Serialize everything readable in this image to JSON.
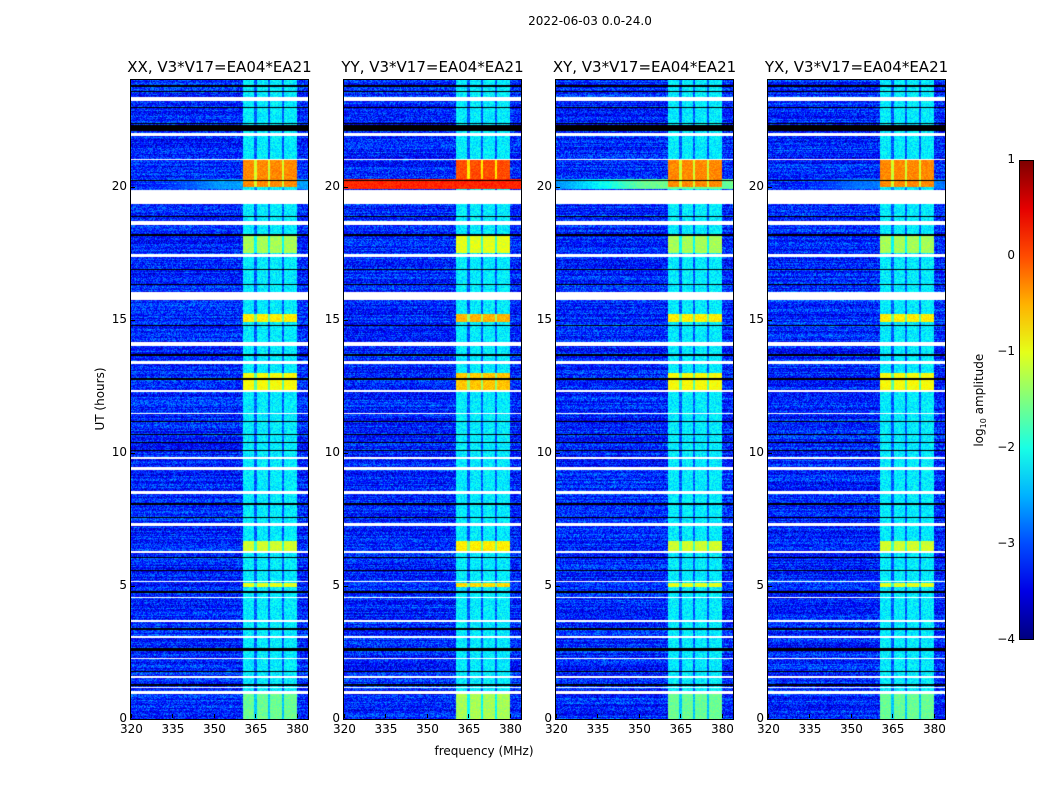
{
  "chart_data": {
    "type": "heatmap",
    "title": "2022-06-03 0.0-24.0",
    "xlabel": "frequency (MHz)",
    "ylabel": "UT (hours)",
    "xlim": [
      320,
      384
    ],
    "ylim": [
      0,
      24
    ],
    "xticks": [
      "320",
      "335",
      "350",
      "365",
      "380"
    ],
    "yticks": [
      "0",
      "5",
      "10",
      "15",
      "20"
    ],
    "panels": [
      {
        "title": "XX, V3*V17=EA04*EA21",
        "broadband_20h_level": -2.6
      },
      {
        "title": "YY, V3*V17=EA04*EA21",
        "broadband_20h_level": 0.2
      },
      {
        "title": "XY, V3*V17=EA04*EA21",
        "broadband_20h_level": -1.6
      },
      {
        "title": "YX, V3*V17=EA04*EA21",
        "broadband_20h_level": -2.8
      }
    ],
    "rfi_band_mhz": [
      360.5,
      380
    ],
    "rfi_subband_edges_mhz": [
      365,
      370,
      375
    ],
    "background_level": -3.2,
    "flagged_white_hours": [
      [
        23.2,
        23.35
      ],
      [
        21.9,
        22.0
      ],
      [
        21.0,
        21.05
      ],
      [
        19.35,
        19.85
      ],
      [
        18.55,
        18.7
      ],
      [
        17.35,
        17.45
      ],
      [
        15.75,
        16.05
      ],
      [
        14.0,
        14.15
      ],
      [
        13.35,
        13.45
      ],
      [
        12.3,
        12.35
      ],
      [
        11.45,
        11.5
      ],
      [
        9.75,
        9.85
      ],
      [
        9.35,
        9.45
      ],
      [
        8.45,
        8.55
      ],
      [
        7.25,
        7.35
      ],
      [
        6.25,
        6.3
      ],
      [
        5.15,
        5.2
      ],
      [
        4.55,
        4.6
      ],
      [
        3.65,
        3.7
      ],
      [
        3.05,
        3.1
      ],
      [
        2.25,
        2.3
      ],
      [
        1.55,
        1.6
      ],
      [
        1.15,
        1.2
      ],
      [
        0.95,
        1.05
      ]
    ],
    "flagged_black_hours": [
      [
        23.75,
        23.8
      ],
      [
        23.55,
        23.6
      ],
      [
        22.95,
        23.0
      ],
      [
        22.35,
        22.4
      ],
      [
        22.1,
        22.3
      ],
      [
        20.2,
        20.25
      ],
      [
        18.85,
        18.9
      ],
      [
        18.15,
        18.2
      ],
      [
        16.85,
        16.9
      ],
      [
        16.3,
        16.35
      ],
      [
        14.75,
        14.8
      ],
      [
        13.65,
        13.7
      ],
      [
        12.75,
        12.8
      ],
      [
        11.15,
        11.2
      ],
      [
        10.65,
        10.7
      ],
      [
        10.35,
        10.4
      ],
      [
        10.05,
        10.1
      ],
      [
        8.05,
        8.1
      ],
      [
        7.55,
        7.6
      ],
      [
        6.05,
        6.1
      ],
      [
        5.55,
        5.6
      ],
      [
        4.75,
        4.8
      ],
      [
        3.35,
        3.4
      ],
      [
        2.55,
        2.65
      ],
      [
        1.75,
        1.8
      ],
      [
        1.25,
        1.3
      ]
    ],
    "rfi_bright_hours": [
      [
        20.0,
        21.0,
        -0.3
      ],
      [
        17.5,
        18.2,
        -1.3
      ],
      [
        14.9,
        15.2,
        -0.8
      ],
      [
        12.3,
        13.0,
        -0.9
      ],
      [
        6.3,
        6.7,
        -1.1
      ],
      [
        4.95,
        5.1,
        -1.0
      ],
      [
        0.0,
        1.0,
        -1.6
      ]
    ],
    "colorbar": {
      "label": "log10 amplitude",
      "label_base": "log",
      "label_sub": "10",
      "label_rest": " amplitude",
      "range": [
        -4,
        1
      ],
      "ticks": [
        "−4",
        "−3",
        "−2",
        "−1",
        "0",
        "1"
      ],
      "colormap": "jet"
    }
  }
}
